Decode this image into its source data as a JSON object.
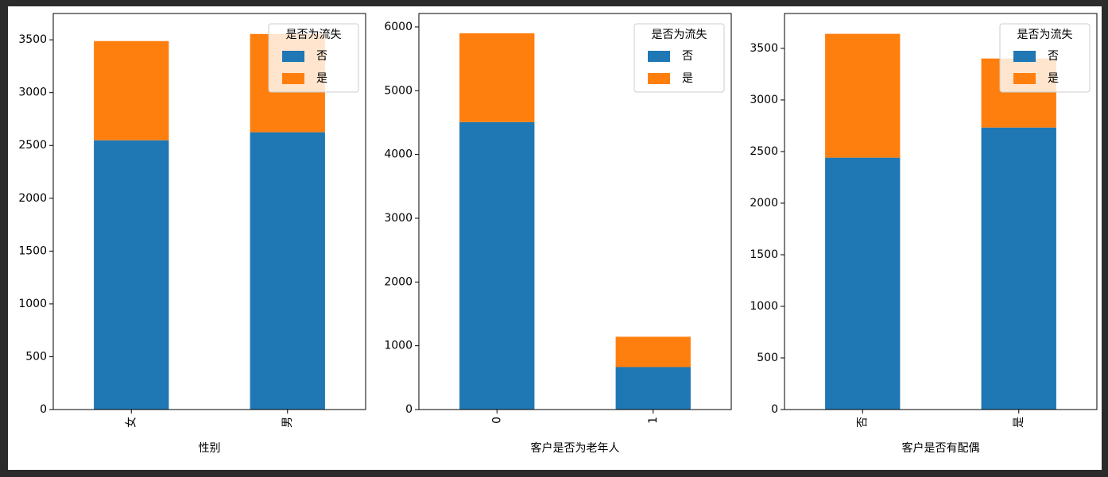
{
  "chart_data": [
    {
      "type": "bar",
      "stacked": true,
      "xlabel": "性别",
      "categories": [
        "女",
        "男"
      ],
      "legend_title": "是否为流失",
      "legend": "upper right",
      "series": [
        {
          "name": "否",
          "color": "#1f77b4",
          "values": [
            2549,
            2625
          ]
        },
        {
          "name": "是",
          "color": "#ff7f0e",
          "values": [
            939,
            930
          ]
        }
      ],
      "ylim": [
        0,
        3749
      ],
      "yticks": [
        0,
        500,
        1000,
        1500,
        2000,
        2500,
        3000,
        3500
      ]
    },
    {
      "type": "bar",
      "stacked": true,
      "xlabel": "客户是否为老年人",
      "categories": [
        "0",
        "1"
      ],
      "legend_title": "是否为流失",
      "legend": "upper right",
      "series": [
        {
          "name": "否",
          "color": "#1f77b4",
          "values": [
            4508,
            666
          ]
        },
        {
          "name": "是",
          "color": "#ff7f0e",
          "values": [
            1393,
            476
          ]
        }
      ],
      "ylim": [
        0,
        6211
      ],
      "yticks": [
        0,
        1000,
        2000,
        3000,
        4000,
        5000,
        6000
      ]
    },
    {
      "type": "bar",
      "stacked": true,
      "xlabel": "客户是否有配偶",
      "categories": [
        "否",
        "是"
      ],
      "legend_title": "是否为流失",
      "legend": "upper right",
      "series": [
        {
          "name": "否",
          "color": "#1f77b4",
          "values": [
            2441,
            2733
          ]
        },
        {
          "name": "是",
          "color": "#ff7f0e",
          "values": [
            1200,
            669
          ]
        }
      ],
      "ylim": [
        0,
        3838
      ],
      "yticks": [
        0,
        500,
        1000,
        1500,
        2000,
        2500,
        3000,
        3500
      ]
    }
  ]
}
